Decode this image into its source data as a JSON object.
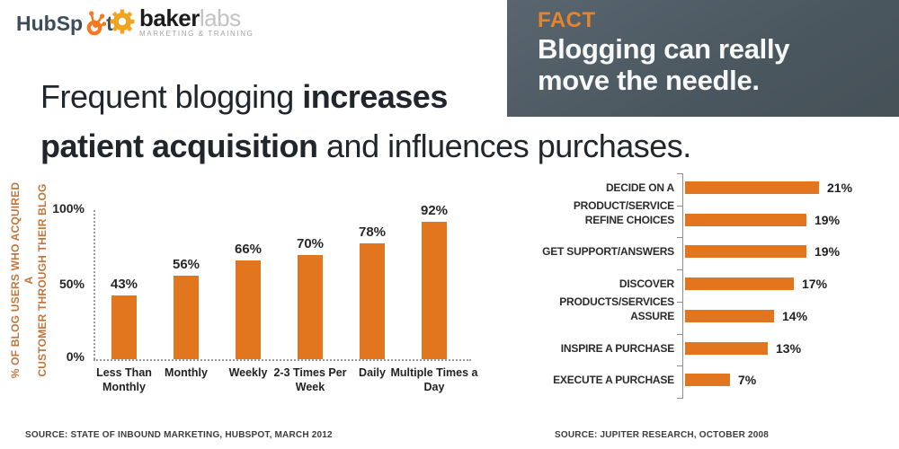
{
  "header": {
    "hubspot": {
      "part1": "HubSp",
      "part2": "t"
    },
    "bakerlabs": {
      "name_bold": "baker",
      "name_light": "labs",
      "subtext": "MARKETING & TRAINING"
    }
  },
  "fact_box": {
    "label": "FACT",
    "line1": "Blogging can really",
    "line2": "move the needle."
  },
  "headline": {
    "line1_regular": "Frequent blogging ",
    "line1_bold": "increases",
    "line2_bold": "patient acquisition",
    "line2_regular": " and influences purchases."
  },
  "chart_data": [
    {
      "type": "bar",
      "title": "",
      "ylabel_line1": "% OF BLOG USERS WHO ACQUIRED A",
      "ylabel_line2": "CUSTOMER THROUGH THEIR BLOG",
      "categories": [
        "Less Than Monthly",
        "Monthly",
        "Weekly",
        "2-3 Times Per Week",
        "Daily",
        "Multiple Times a Day"
      ],
      "values": [
        43,
        56,
        66,
        70,
        78,
        92
      ],
      "value_labels": [
        "43%",
        "56%",
        "66%",
        "70%",
        "78%",
        "92%"
      ],
      "yticks": [
        "100%",
        "50%",
        "0%"
      ],
      "ylim": [
        0,
        100
      ],
      "grid": false,
      "bar_color": "#e2761f",
      "source": "SOURCE: STATE OF INBOUND MARKETING, HUBSPOT, MARCH 2012"
    },
    {
      "type": "bar",
      "orientation": "horizontal",
      "title": "",
      "categories": [
        "DECIDE ON A PRODUCT/SERVICE",
        "REFINE CHOICES",
        "GET SUPPORT/ANSWERS",
        "DISCOVER PRODUCTS/SERVICES",
        "ASSURE",
        "INSPIRE A PURCHASE",
        "EXECUTE A PURCHASE"
      ],
      "values": [
        21,
        19,
        19,
        17,
        14,
        13,
        7
      ],
      "value_labels": [
        "21%",
        "19%",
        "19%",
        "17%",
        "14%",
        "13%",
        "7%"
      ],
      "xlim": [
        0,
        22
      ],
      "grid": false,
      "bar_color": "#e2761f",
      "source": "SOURCE: JUPITER RESEARCH, OCTOBER 2008"
    }
  ],
  "colors": {
    "accent_orange": "#e2761f",
    "fact_background": "#4d5a64",
    "fact_label_orange": "#e8832d",
    "ylabel_orange": "#c0763c",
    "headline_text": "#20262b"
  }
}
